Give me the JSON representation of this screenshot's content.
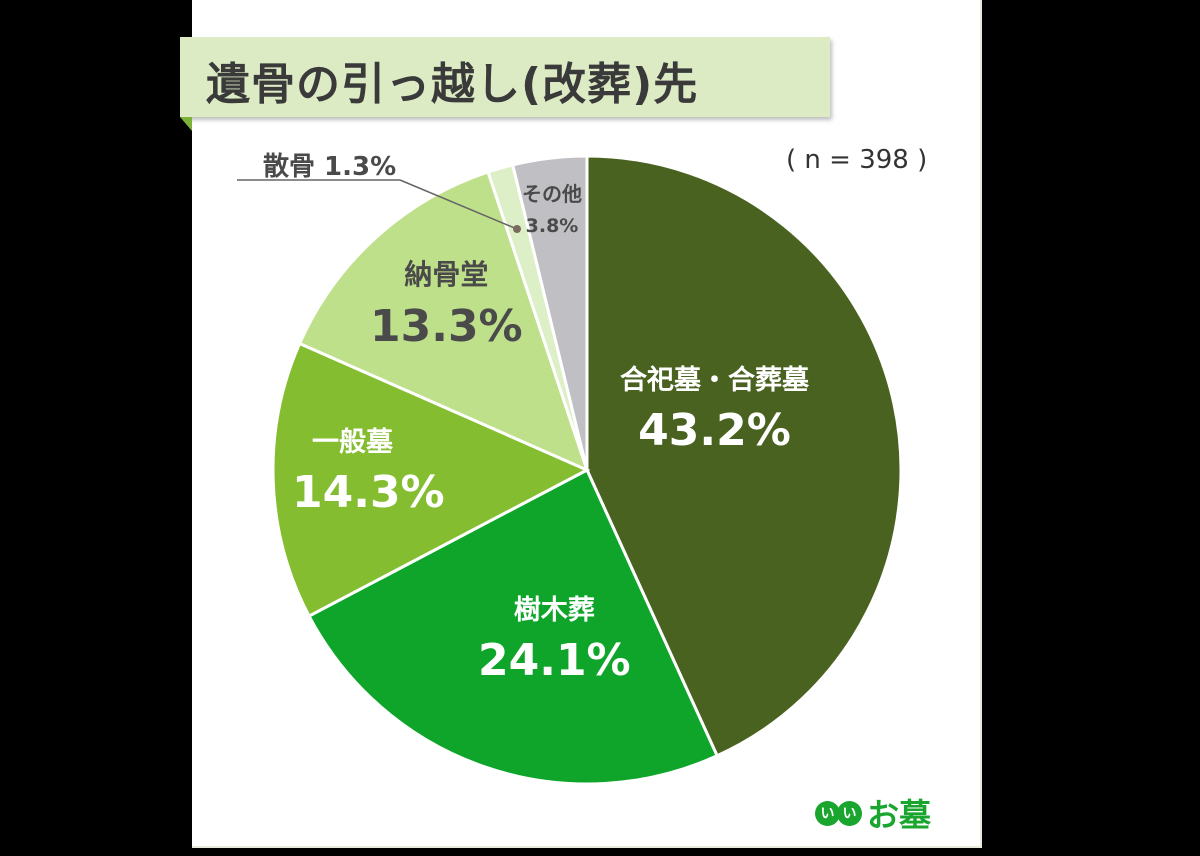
{
  "title": "遺骨の引っ越し(改葬)先",
  "sample": "( n = 398 )",
  "logo": {
    "mark": "いい",
    "text": "お墓",
    "color": "#1aa52f"
  },
  "chart_data": {
    "type": "pie",
    "title": "遺骨の引っ越し(改葬)先",
    "n": 398,
    "start": "12 o'clock, clockwise",
    "slices": [
      {
        "label": "合祀墓・合葬墓",
        "value": 43.2,
        "display": "43.2%",
        "color": "#4a6220"
      },
      {
        "label": "樹木葬",
        "value": 24.1,
        "display": "24.1%",
        "color": "#0ea52a"
      },
      {
        "label": "一般墓",
        "value": 14.3,
        "display": "14.3%",
        "color": "#84bd30"
      },
      {
        "label": "納骨堂",
        "value": 13.3,
        "display": "13.3%",
        "color": "#bfe08a"
      },
      {
        "label": "散骨",
        "value": 1.3,
        "display": "1.3%",
        "color": "#ddefc6"
      },
      {
        "label": "その他",
        "value": 3.8,
        "display": "3.8%",
        "color": "#c0bfc4"
      }
    ]
  },
  "labels": {
    "s0": {
      "name": "合祀墓・合葬墓",
      "pct": "43.2%"
    },
    "s1": {
      "name": "樹木葬",
      "pct": "24.1%"
    },
    "s2": {
      "name": "一般墓",
      "pct": "14.3%"
    },
    "s3": {
      "name": "納骨堂",
      "pct": "13.3%"
    },
    "s4": {
      "name": "散骨 1.3%"
    },
    "s5": {
      "name": "その他",
      "pct": "3.8%"
    }
  }
}
